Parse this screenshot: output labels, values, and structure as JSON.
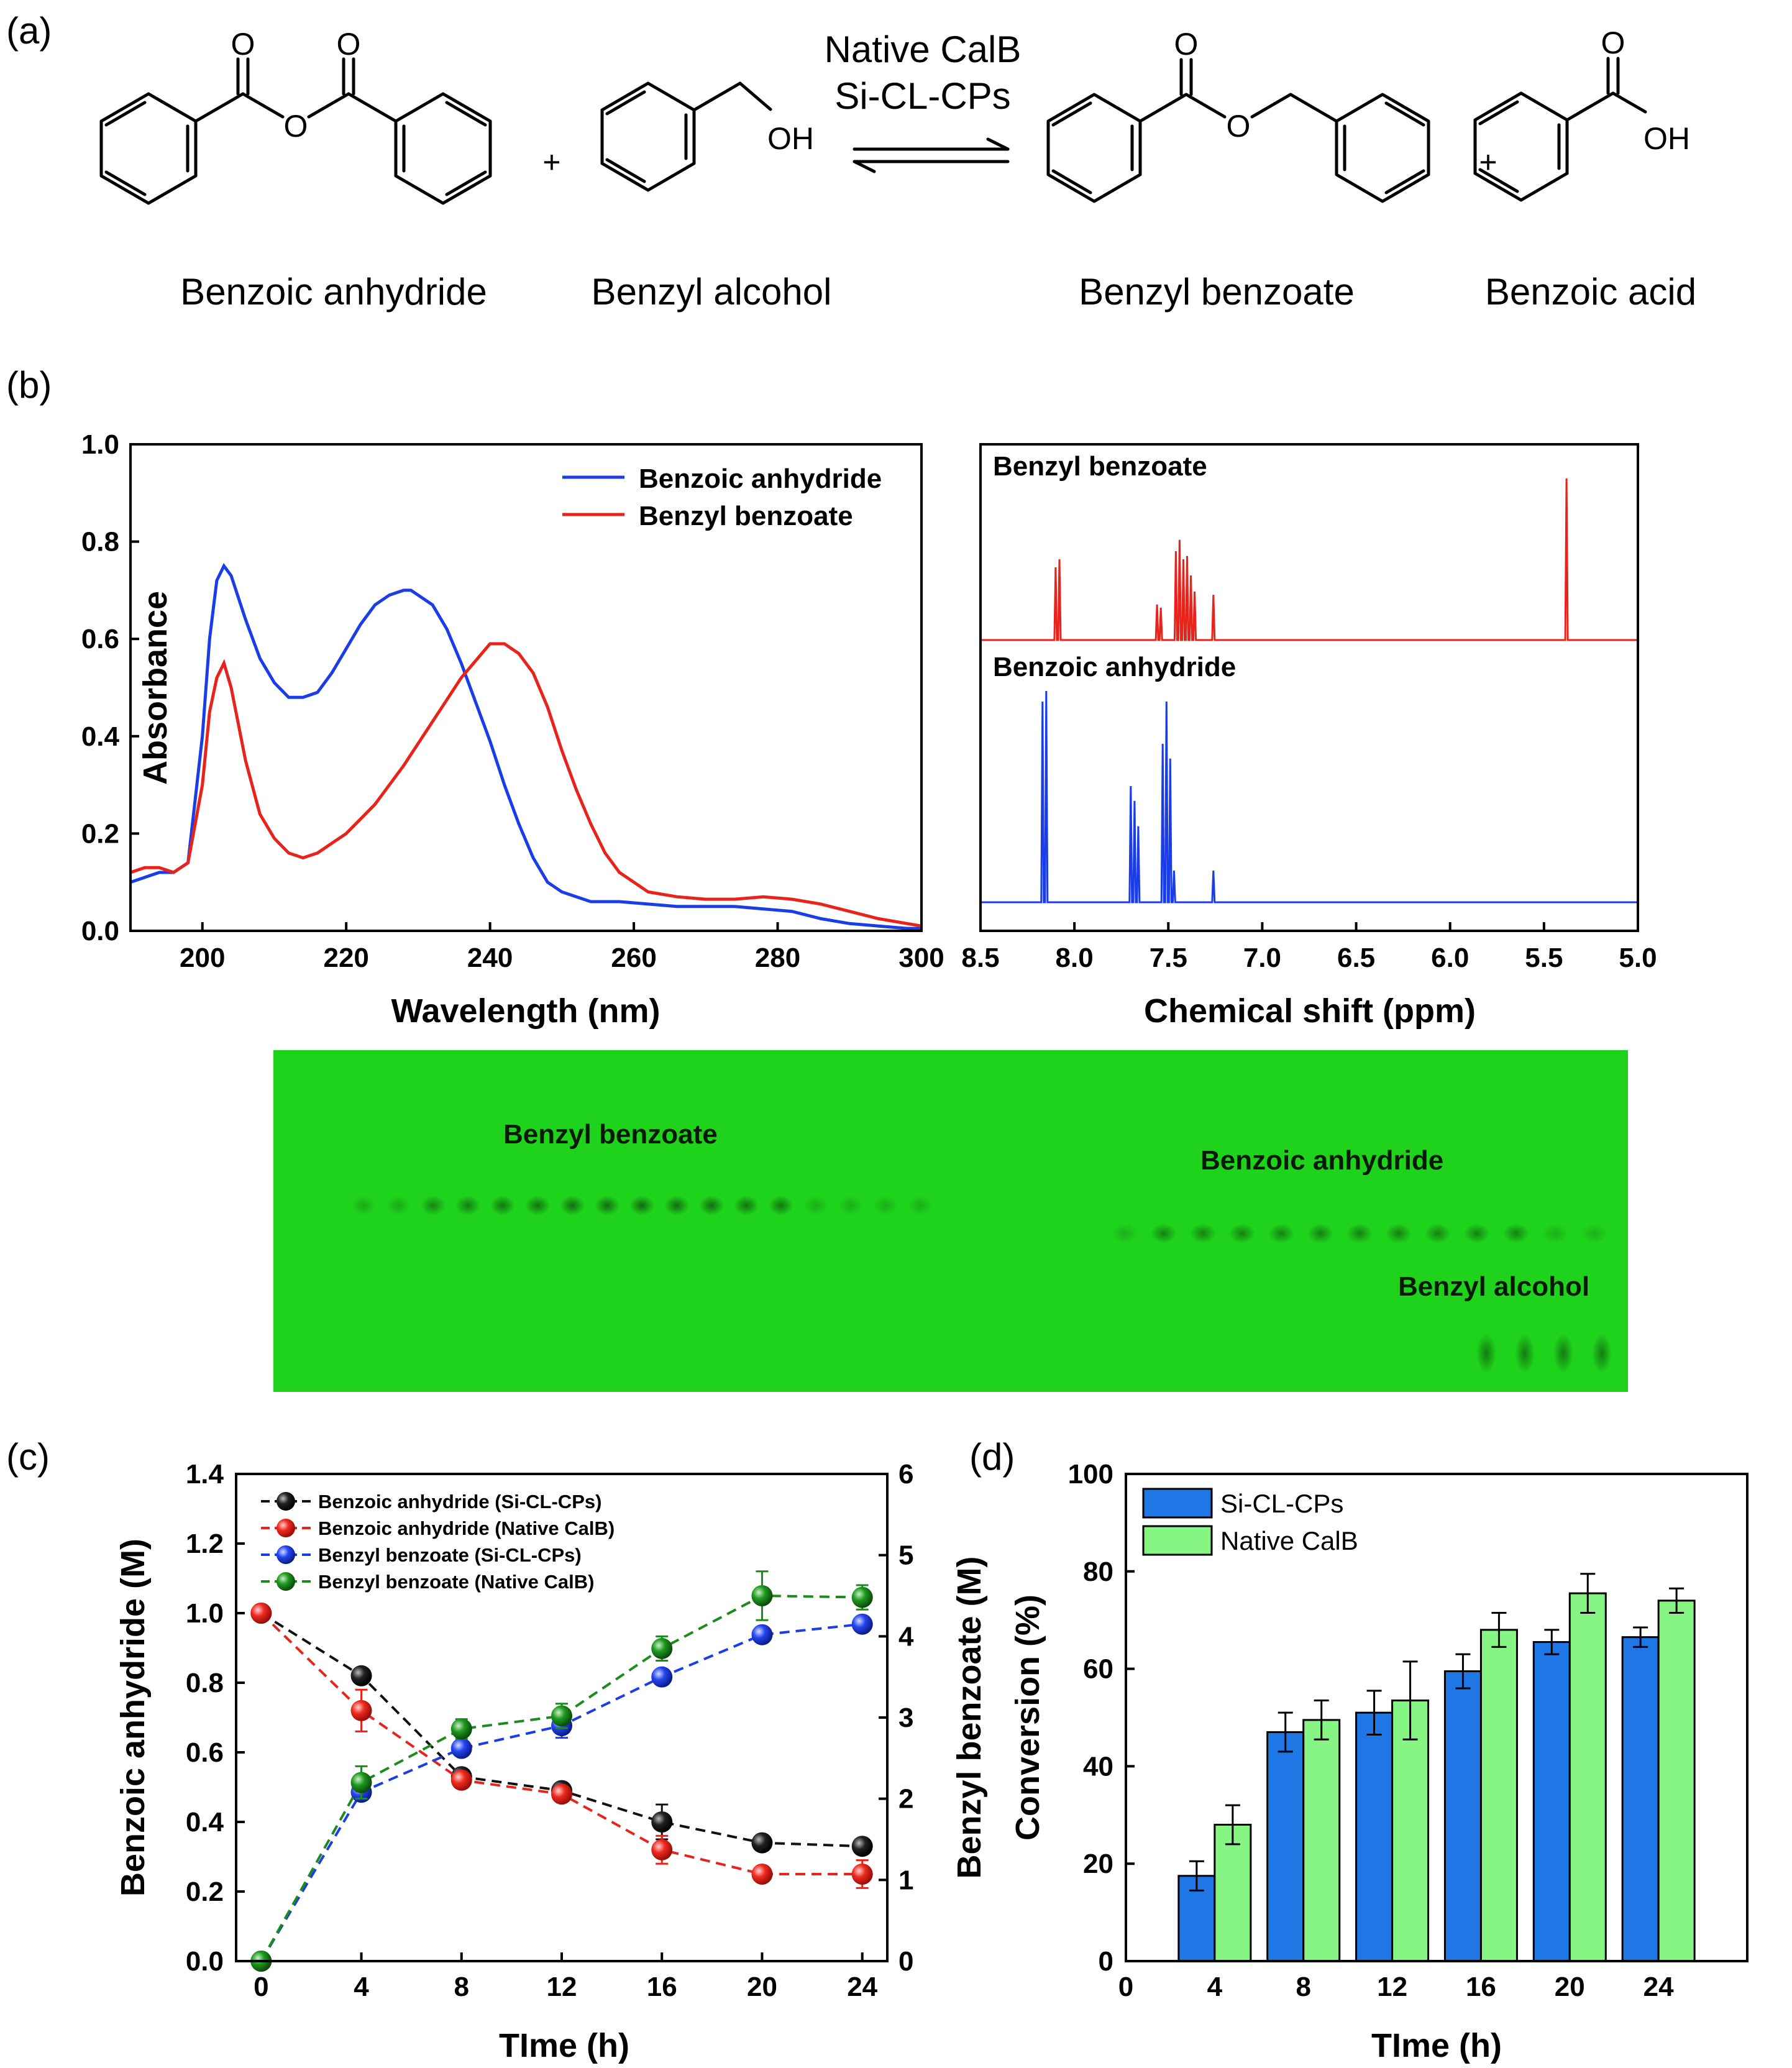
{
  "panel_labels": [
    "(a)",
    "(b)",
    "(c)",
    "(d)"
  ],
  "scheme": {
    "reactants": [
      "Benzoic anhydride",
      "Benzyl alcohol"
    ],
    "products": [
      "Benzyl benzoate",
      "Benzoic acid"
    ],
    "plus": "+",
    "catalysts": [
      "Native CalB",
      "Si-CL-CPs"
    ],
    "atoms": {
      "O": "O",
      "OH": "OH"
    }
  },
  "tlc": {
    "labels": [
      "Benzyl benzoate",
      "Benzoic anhydride",
      "Benzyl alcohol"
    ],
    "colors": {
      "plate": "#1fd31c",
      "spot": "#0e4a0c"
    }
  },
  "colors": {
    "black": "#111111",
    "red": "#e8231c",
    "blue": "#1a3de8",
    "green": "#1d8a1d",
    "bar_blue": "#1f77e6",
    "bar_green": "#86f583"
  },
  "chart_data": [
    {
      "type": "line",
      "xlabel": "Wavelength (nm)",
      "ylabel": "Absorbance",
      "xlim": [
        190,
        300
      ],
      "ylim": [
        0.0,
        1.0
      ],
      "xticks": [
        200,
        220,
        240,
        260,
        280,
        300
      ],
      "yticks": [
        "0.0",
        "0.2",
        "0.4",
        "0.6",
        "0.8",
        "1.0"
      ],
      "legend": "top-right",
      "series": [
        {
          "name": "Benzoic anhydride",
          "color": "#1a3de8",
          "x": [
            190,
            192,
            194,
            196,
            198,
            200,
            201,
            202,
            203,
            204,
            206,
            208,
            210,
            212,
            214,
            216,
            218,
            220,
            222,
            224,
            226,
            228,
            229,
            230,
            232,
            234,
            236,
            238,
            240,
            242,
            244,
            246,
            248,
            250,
            254,
            258,
            262,
            266,
            270,
            274,
            278,
            282,
            286,
            290,
            294,
            298,
            300
          ],
          "y": [
            0.1,
            0.11,
            0.12,
            0.12,
            0.14,
            0.4,
            0.6,
            0.72,
            0.75,
            0.73,
            0.64,
            0.56,
            0.51,
            0.48,
            0.48,
            0.49,
            0.53,
            0.58,
            0.63,
            0.67,
            0.69,
            0.7,
            0.7,
            0.69,
            0.67,
            0.62,
            0.55,
            0.47,
            0.39,
            0.3,
            0.22,
            0.15,
            0.1,
            0.08,
            0.06,
            0.06,
            0.055,
            0.05,
            0.05,
            0.05,
            0.045,
            0.04,
            0.025,
            0.015,
            0.01,
            0.005,
            0.005
          ]
        },
        {
          "name": "Benzyl benzoate",
          "color": "#e8231c",
          "x": [
            190,
            192,
            194,
            196,
            198,
            200,
            201,
            202,
            203,
            204,
            206,
            208,
            210,
            212,
            214,
            216,
            218,
            220,
            224,
            228,
            232,
            236,
            240,
            242,
            244,
            246,
            248,
            250,
            252,
            254,
            256,
            258,
            262,
            266,
            270,
            274,
            278,
            282,
            286,
            290,
            294,
            298,
            300
          ],
          "y": [
            0.12,
            0.13,
            0.13,
            0.12,
            0.14,
            0.3,
            0.45,
            0.52,
            0.55,
            0.5,
            0.35,
            0.24,
            0.19,
            0.16,
            0.15,
            0.16,
            0.18,
            0.2,
            0.26,
            0.34,
            0.43,
            0.52,
            0.59,
            0.59,
            0.57,
            0.53,
            0.46,
            0.37,
            0.29,
            0.22,
            0.16,
            0.12,
            0.08,
            0.07,
            0.065,
            0.065,
            0.07,
            0.065,
            0.055,
            0.04,
            0.025,
            0.015,
            0.01
          ]
        }
      ]
    },
    {
      "type": "line",
      "xlabel": "Chemical shift (ppm)",
      "xlim": [
        8.5,
        5.0
      ],
      "xticks": [
        "8.5",
        "8.0",
        "7.5",
        "7.0",
        "6.5",
        "6.0",
        "5.5",
        "5.0"
      ],
      "series": [
        {
          "name": "Benzyl benzoate",
          "color": "#e8231c",
          "peaks": [
            [
              8.1,
              0.45
            ],
            [
              8.08,
              0.5
            ],
            [
              7.56,
              0.22
            ],
            [
              7.54,
              0.2
            ],
            [
              7.46,
              0.55
            ],
            [
              7.44,
              0.62
            ],
            [
              7.42,
              0.5
            ],
            [
              7.4,
              0.52
            ],
            [
              7.38,
              0.4
            ],
            [
              7.36,
              0.3
            ],
            [
              7.26,
              0.28
            ],
            [
              5.38,
              1.0
            ]
          ]
        },
        {
          "name": "Benzoic anhydride",
          "color": "#1a3de8",
          "peaks": [
            [
              8.17,
              0.95
            ],
            [
              8.15,
              1.0
            ],
            [
              7.7,
              0.55
            ],
            [
              7.68,
              0.48
            ],
            [
              7.66,
              0.36
            ],
            [
              7.53,
              0.75
            ],
            [
              7.51,
              0.95
            ],
            [
              7.49,
              0.68
            ],
            [
              7.47,
              0.15
            ],
            [
              7.26,
              0.15
            ]
          ]
        }
      ]
    },
    {
      "type": "line",
      "xlabel": "TIme (h)",
      "ylabel": "Benzoic anhydride (M)",
      "y2label": "Benzyl benzoate (M)",
      "xlim": [
        -1,
        25
      ],
      "ylim": [
        0.0,
        1.4
      ],
      "y2lim": [
        0,
        6
      ],
      "xticks": [
        0,
        4,
        8,
        12,
        16,
        20,
        24
      ],
      "yticks": [
        "0.0",
        "0.2",
        "0.4",
        "0.6",
        "0.8",
        "1.0",
        "1.2",
        "1.4"
      ],
      "y2ticks": [
        "0",
        "1",
        "2",
        "3",
        "4",
        "5",
        "6"
      ],
      "legend": "top-left",
      "x": [
        0,
        4,
        8,
        12,
        16,
        20,
        24
      ],
      "series": [
        {
          "name": "Benzoic anhydride (Si-CL-CPs)",
          "color": "#111111",
          "axis": "left",
          "values": [
            1.0,
            0.82,
            0.53,
            0.49,
            0.4,
            0.34,
            0.33
          ],
          "err": [
            0.0,
            0.02,
            0.02,
            0.02,
            0.05,
            0.02,
            0.02
          ]
        },
        {
          "name": "Benzoic anhydride (Native CalB)",
          "color": "#e8231c",
          "axis": "left",
          "values": [
            1.0,
            0.72,
            0.52,
            0.48,
            0.32,
            0.25,
            0.25
          ],
          "err": [
            0.0,
            0.06,
            0.02,
            0.02,
            0.04,
            0.02,
            0.04
          ]
        },
        {
          "name": "Benzyl benzoate (Si-CL-CPs)",
          "color": "#1a3de8",
          "axis": "right",
          "values": [
            0.0,
            2.08,
            2.62,
            2.9,
            3.5,
            4.02,
            4.15
          ],
          "err": [
            0.0,
            0.08,
            0.08,
            0.15,
            0.08,
            0.08,
            0.08
          ]
        },
        {
          "name": "Benzyl benzoate (Native CalB)",
          "color": "#1d8a1d",
          "axis": "right",
          "values": [
            0.0,
            2.2,
            2.86,
            3.02,
            3.85,
            4.5,
            4.48
          ],
          "err": [
            0.0,
            0.2,
            0.12,
            0.15,
            0.15,
            0.3,
            0.15
          ]
        }
      ]
    },
    {
      "type": "bar",
      "xlabel": "TIme (h)",
      "ylabel": "Conversion (%)",
      "xlim": [
        0,
        28
      ],
      "ylim": [
        0,
        100
      ],
      "xticks": [
        0,
        4,
        8,
        12,
        16,
        20,
        24
      ],
      "yticks": [
        0,
        20,
        40,
        60,
        80,
        100
      ],
      "legend": "top-left",
      "categories": [
        4,
        8,
        12,
        16,
        20,
        24
      ],
      "series": [
        {
          "name": "Si-CL-CPs",
          "color": "#1f77e6",
          "values": [
            17.5,
            47.0,
            51.0,
            59.5,
            65.5,
            66.5
          ],
          "err": [
            3.0,
            4.0,
            4.5,
            3.5,
            2.5,
            2.0
          ]
        },
        {
          "name": "Native CalB",
          "color": "#86f583",
          "values": [
            28.0,
            49.5,
            53.5,
            68.0,
            75.5,
            74.0
          ],
          "err": [
            4.0,
            4.0,
            8.0,
            3.5,
            4.0,
            2.5
          ]
        }
      ]
    }
  ]
}
